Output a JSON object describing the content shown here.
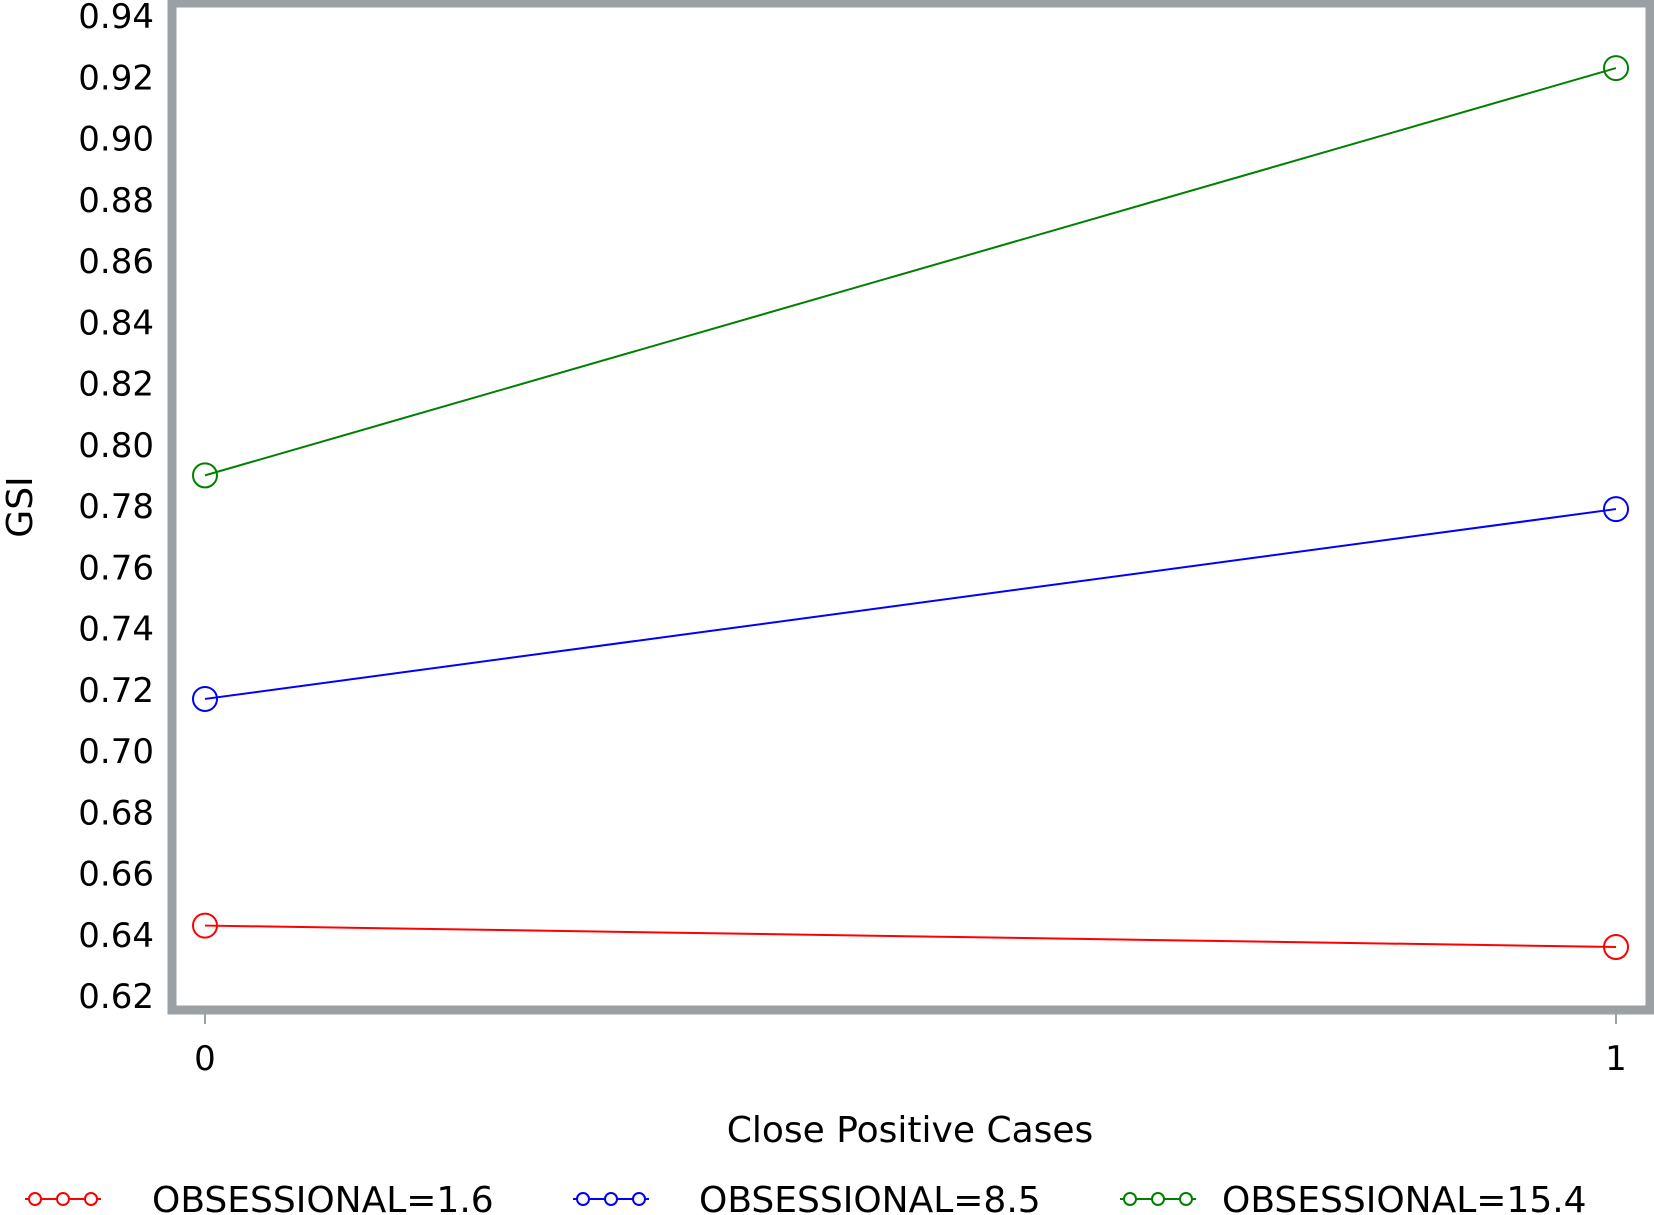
{
  "chart_data": {
    "type": "line",
    "xlabel": "Close Positive Cases",
    "ylabel": "GSI",
    "x": [
      0,
      1
    ],
    "x_ticks": [
      "0",
      "1"
    ],
    "y_ticks": [
      "0.62",
      "0.64",
      "0.66",
      "0.68",
      "0.70",
      "0.72",
      "0.74",
      "0.76",
      "0.78",
      "0.80",
      "0.82",
      "0.84",
      "0.86",
      "0.88",
      "0.90",
      "0.92",
      "0.94"
    ],
    "ylim": [
      0.62,
      0.94
    ],
    "grid": false,
    "legend_position": "bottom",
    "marker": "open-circle",
    "series": [
      {
        "name": "OBSESSIONAL=1.6",
        "color": "#ff0000",
        "values": [
          0.643,
          0.636
        ]
      },
      {
        "name": "OBSESSIONAL=8.5",
        "color": "#0000ff",
        "values": [
          0.717,
          0.779
        ]
      },
      {
        "name": "OBSESSIONAL=15.4",
        "color": "#008000",
        "values": [
          0.79,
          0.923
        ]
      }
    ],
    "frame_color": "#9aa0a4"
  }
}
